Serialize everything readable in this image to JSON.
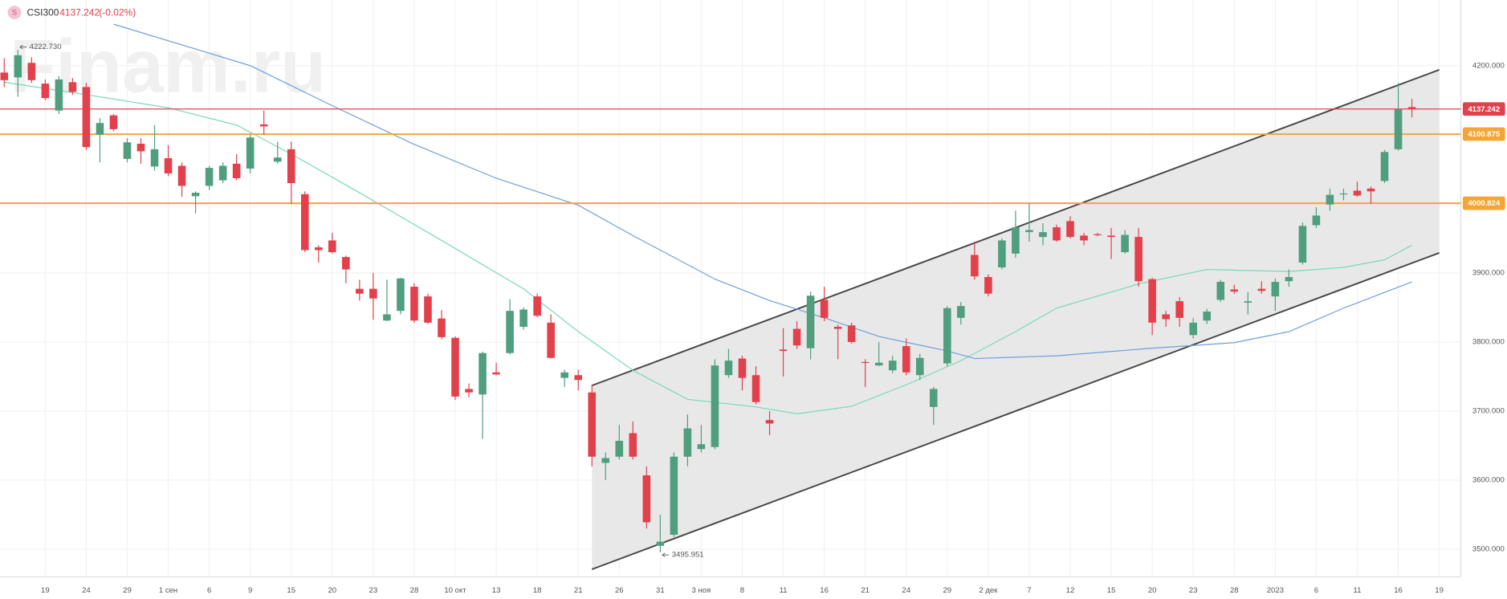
{
  "chart_data": {
    "type": "candlestick",
    "symbol": "CSI300",
    "icon": "S",
    "change": "(-0.02%)",
    "watermark": "Finam.ru",
    "up_color": "#4f9e7e",
    "down_color": "#e2404b",
    "grid": true,
    "ylim": [
      3460,
      4295
    ],
    "yticks": [
      {
        "value": 3500,
        "label": "3500.000"
      },
      {
        "value": 3600,
        "label": "3600.000"
      },
      {
        "value": 3700,
        "label": "3700.000"
      },
      {
        "value": 3800,
        "label": "3800.000"
      },
      {
        "value": 3900,
        "label": "3900.000"
      },
      {
        "value": 4000,
        "label": "4000.000"
      },
      {
        "value": 4100,
        "label": "4100.000"
      },
      {
        "value": 4200,
        "label": "4200.000"
      }
    ],
    "categories": [
      null,
      null,
      null,
      "19",
      null,
      null,
      "24",
      null,
      null,
      "29",
      null,
      null,
      "1 сен",
      null,
      null,
      "6",
      null,
      null,
      "9",
      null,
      null,
      "15",
      null,
      null,
      "20",
      null,
      null,
      "23",
      null,
      null,
      "28",
      null,
      null,
      "10 окт",
      null,
      null,
      "13",
      null,
      null,
      "18",
      null,
      null,
      "21",
      null,
      null,
      "26",
      null,
      null,
      "31",
      null,
      null,
      "3 ноя",
      null,
      null,
      "8",
      null,
      null,
      "11",
      null,
      null,
      "16",
      null,
      null,
      "21",
      null,
      null,
      "24",
      null,
      null,
      "29",
      null,
      null,
      "2 дек",
      null,
      null,
      "7",
      null,
      null,
      "12",
      null,
      null,
      "15",
      null,
      null,
      "20",
      null,
      null,
      "23",
      null,
      null,
      "28",
      null,
      null,
      "2023",
      null,
      null,
      "6",
      null,
      null,
      "11",
      null,
      null,
      "16",
      null,
      null,
      "19"
    ],
    "open": [
      4190,
      4183,
      4204,
      4174,
      4135,
      4176,
      4169,
      4100,
      4128,
      4065,
      4087,
      4054,
      4066,
      4055,
      4011,
      4026,
      4034,
      4058,
      4051,
      4115,
      4061,
      4079,
      4014,
      3937,
      3947,
      3923,
      3877,
      3877,
      3831,
      3845,
      3880,
      3866,
      3834,
      3806,
      3732,
      3724,
      3756,
      3784,
      3822,
      3866,
      3828,
      3748,
      3752,
      3727,
      3625,
      3634,
      3668,
      3607,
      3505,
      3521,
      3634,
      3645,
      3648,
      3752,
      3776,
      3752,
      3687,
      3789,
      3819,
      3791,
      3861,
      3822,
      3824,
      3771,
      3766,
      3759,
      3794,
      3752,
      3706,
      3769,
      3835,
      3926,
      3894,
      3908,
      3928,
      3959,
      3952,
      3966,
      3975,
      3954,
      3956,
      3954,
      3930,
      3952,
      3891,
      3840,
      3859,
      3810,
      3831,
      3861,
      3876,
      3857,
      3877,
      3866,
      3888,
      3915,
      3969,
      3999,
      4014,
      4019,
      4022,
      4033,
      4079,
      4140,
      null,
      null
    ],
    "high": [
      4211,
      4222.73,
      4212,
      4180,
      4185,
      4182,
      4175,
      4124,
      4130,
      4095,
      4095,
      4114,
      4085,
      4060,
      4018,
      4055,
      4060,
      4072,
      4100,
      4135,
      4090,
      4090,
      4018,
      3940,
      3958,
      3925,
      3890,
      3900,
      3890,
      3893,
      3885,
      3870,
      3846,
      3808,
      3740,
      3786,
      3770,
      3862,
      3850,
      3870,
      3840,
      3760,
      3760,
      3738,
      3640,
      3680,
      3685,
      3620,
      3550,
      3640,
      3695,
      3680,
      3775,
      3790,
      3780,
      3765,
      3700,
      3820,
      3830,
      3873,
      3880,
      3825,
      3828,
      3775,
      3800,
      3780,
      3805,
      3783,
      3735,
      3852,
      3858,
      3945,
      3898,
      3950,
      3990,
      4000,
      3972,
      3970,
      3982,
      3958,
      3958,
      3965,
      3962,
      3965,
      3893,
      3845,
      3865,
      3835,
      3848,
      3890,
      3883,
      3872,
      3888,
      3892,
      3905,
      3973,
      3995,
      4022,
      4022,
      4032,
      4025,
      4078,
      4175,
      4152,
      null,
      null
    ],
    "low": [
      4169,
      4155,
      4175,
      4150,
      4130,
      4158,
      4078,
      4060,
      4105,
      4060,
      4058,
      4048,
      4040,
      4010,
      3986,
      4020,
      4030,
      4034,
      4044,
      4100,
      4058,
      4000,
      3930,
      3915,
      3928,
      3885,
      3860,
      3832,
      3830,
      3840,
      3828,
      3826,
      3804,
      3716,
      3720,
      3660,
      3752,
      3782,
      3818,
      3836,
      3776,
      3735,
      3730,
      3620,
      3600,
      3630,
      3630,
      3530,
      3495.951,
      3518,
      3620,
      3640,
      3645,
      3748,
      3730,
      3710,
      3665,
      3750,
      3790,
      3775,
      3830,
      3775,
      3798,
      3735,
      3765,
      3755,
      3752,
      3745,
      3680,
      3765,
      3825,
      3890,
      3866,
      3905,
      3922,
      3945,
      3940,
      3945,
      3950,
      3940,
      3953,
      3920,
      3928,
      3880,
      3810,
      3822,
      3822,
      3805,
      3826,
      3858,
      3870,
      3840,
      3870,
      3845,
      3880,
      3912,
      3965,
      3990,
      4005,
      4010,
      4000,
      4030,
      4077,
      4125,
      null,
      null
    ],
    "close": [
      4179,
      4215,
      4179,
      4153,
      4180,
      4162,
      4082,
      4117,
      4108,
      4089,
      4076,
      4079,
      4044,
      4026,
      4016,
      4052,
      4055,
      4037,
      4096,
      4112,
      4067,
      4030,
      3933,
      3933,
      3930,
      3905,
      3870,
      3863,
      3840,
      3892,
      3831,
      3828,
      3807,
      3721,
      3727,
      3784,
      3753,
      3845,
      3847,
      3838,
      3777,
      3756,
      3745,
      3634,
      3632,
      3657,
      3634,
      3539,
      3511,
      3634,
      3675,
      3652,
      3766,
      3773,
      3748,
      3713,
      3682,
      3787,
      3795,
      3867,
      3835,
      3819,
      3800,
      3770,
      3770,
      3773,
      3756,
      3777,
      3732,
      3849,
      3852,
      3895,
      3870,
      3947,
      3966,
      3962,
      3959,
      3947,
      3952,
      3947,
      3955,
      3952,
      3955,
      3888,
      3828,
      3833,
      3835,
      3828,
      3844,
      3887,
      3873,
      3859,
      3874,
      3887,
      3894,
      3968,
      3983,
      4013,
      4015,
      4012,
      4018,
      4075,
      4137,
      4137.242,
      null,
      null
    ],
    "max_label": "4222.730",
    "min_label": "3495.951",
    "levels": [
      {
        "value": 4137.242,
        "label": "4137.242",
        "color": "#e2404b"
      },
      {
        "value": 4100.875,
        "label": "4100.875",
        "color": "#f5a533"
      },
      {
        "value": 4000.824,
        "label": "4000.824",
        "color": "#f5a533"
      }
    ],
    "moving_averages": [
      {
        "color": "#7ad8b8",
        "x": [
          0,
          6,
          12,
          17,
          21,
          26,
          32,
          38,
          42,
          46,
          50,
          55,
          58,
          62,
          66,
          70,
          74,
          77,
          83,
          88,
          94,
          98,
          101,
          103
        ],
        "values": [
          4176,
          4158,
          4139,
          4114,
          4072,
          4016,
          3947,
          3877,
          3815,
          3759,
          3717,
          3706,
          3696,
          3707,
          3738,
          3773,
          3815,
          3849,
          3884,
          3905,
          3902,
          3908,
          3919,
          3940
        ]
      },
      {
        "color": "#6f9fd8",
        "x": [
          8,
          18,
          24,
          30,
          36,
          42,
          46,
          52,
          56,
          60,
          64,
          69,
          71,
          77,
          84,
          90,
          94,
          98,
          103
        ],
        "values": [
          4260,
          4200,
          4142,
          4086,
          4037,
          3998,
          3954,
          3891,
          3860,
          3835,
          3808,
          3787,
          3776,
          3780,
          3791,
          3799,
          3815,
          3849,
          3887
        ]
      }
    ],
    "channel": {
      "x": [
        43,
        105
      ],
      "upper": [
        3737,
        4194
      ],
      "lower": [
        3471,
        3929
      ],
      "fill": "#e8e8e8",
      "color": "#444444"
    }
  }
}
